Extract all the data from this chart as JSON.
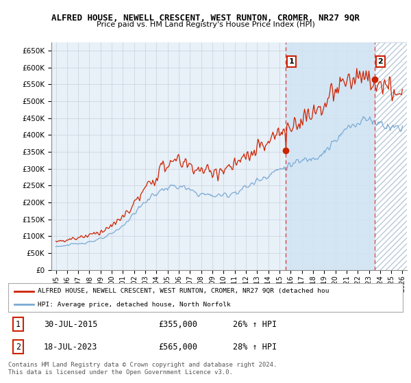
{
  "title": "ALFRED HOUSE, NEWELL CRESCENT, WEST RUNTON, CROMER, NR27 9QR",
  "subtitle": "Price paid vs. HM Land Registry's House Price Index (HPI)",
  "ylim": [
    0,
    675000
  ],
  "yticks": [
    0,
    50000,
    100000,
    150000,
    200000,
    250000,
    300000,
    350000,
    400000,
    450000,
    500000,
    550000,
    600000,
    650000
  ],
  "ytick_labels": [
    "£0",
    "£50K",
    "£100K",
    "£150K",
    "£200K",
    "£250K",
    "£300K",
    "£350K",
    "£400K",
    "£450K",
    "£500K",
    "£550K",
    "£600K",
    "£650K"
  ],
  "sale1_year": 2015.57,
  "sale1_price": 355000,
  "sale2_year": 2023.54,
  "sale2_price": 565000,
  "hpi_color": "#7aaad4",
  "price_color": "#cc2200",
  "vline_color": "#dd4444",
  "grid_color": "#c8d0dc",
  "plot_bg_color": "#e8f0f8",
  "shade_color": "#d0e4f4",
  "hatch_color": "#b8c8d8",
  "legend_label_price": "ALFRED HOUSE, NEWELL CRESCENT, WEST RUNTON, CROMER, NR27 9QR (detached hou",
  "legend_label_hpi": "HPI: Average price, detached house, North Norfolk",
  "footer": "Contains HM Land Registry data © Crown copyright and database right 2024.\nThis data is licensed under the Open Government Licence v3.0.",
  "table_row1": [
    "1",
    "30-JUL-2015",
    "£355,000",
    "26% ↑ HPI"
  ],
  "table_row2": [
    "2",
    "18-JUL-2023",
    "£565,000",
    "28% ↑ HPI"
  ]
}
